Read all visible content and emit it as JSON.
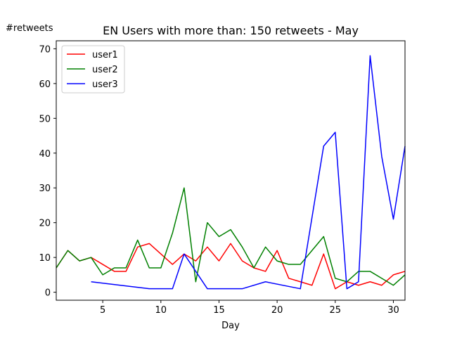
{
  "chart_data": {
    "type": "line",
    "title": "EN Users with more than: 150 retweets - May",
    "xlabel": "Day",
    "ylabel": "#retweets",
    "xlim": [
      1,
      31
    ],
    "ylim": [
      -2.3,
      72.3
    ],
    "xticks": [
      5,
      10,
      15,
      20,
      25,
      30
    ],
    "yticks": [
      0,
      10,
      20,
      30,
      40,
      50,
      60,
      70
    ],
    "grid": false,
    "legend_position": "upper-left",
    "series": [
      {
        "name": "user1",
        "color": "#ff0000",
        "points": [
          [
            1,
            7
          ],
          [
            2,
            12
          ],
          [
            3,
            9
          ],
          [
            4,
            10
          ],
          [
            5,
            8
          ],
          [
            6,
            6
          ],
          [
            7,
            6
          ],
          [
            8,
            13
          ],
          [
            9,
            14
          ],
          [
            10,
            11
          ],
          [
            11,
            8
          ],
          [
            12,
            11
          ],
          [
            13,
            9
          ],
          [
            14,
            13
          ],
          [
            15,
            9
          ],
          [
            16,
            14
          ],
          [
            17,
            9
          ],
          [
            18,
            7
          ],
          [
            19,
            6
          ],
          [
            20,
            12
          ],
          [
            21,
            4
          ],
          [
            22,
            3
          ],
          [
            23,
            2
          ],
          [
            24,
            11
          ],
          [
            25,
            1
          ],
          [
            26,
            3
          ],
          [
            27,
            2
          ],
          [
            28,
            3
          ],
          [
            29,
            2
          ],
          [
            30,
            5
          ],
          [
            31,
            6
          ]
        ]
      },
      {
        "name": "user2",
        "color": "#008000",
        "points": [
          [
            1,
            7
          ],
          [
            2,
            12
          ],
          [
            3,
            9
          ],
          [
            4,
            10
          ],
          [
            5,
            5
          ],
          [
            6,
            7
          ],
          [
            7,
            7
          ],
          [
            8,
            15
          ],
          [
            9,
            7
          ],
          [
            10,
            7
          ],
          [
            11,
            17
          ],
          [
            12,
            30
          ],
          [
            13,
            3
          ],
          [
            14,
            20
          ],
          [
            15,
            16
          ],
          [
            16,
            18
          ],
          [
            17,
            13
          ],
          [
            18,
            7
          ],
          [
            19,
            13
          ],
          [
            20,
            9
          ],
          [
            21,
            8
          ],
          [
            22,
            8
          ],
          [
            23,
            12
          ],
          [
            24,
            16
          ],
          [
            25,
            4
          ],
          [
            26,
            3
          ],
          [
            27,
            6
          ],
          [
            28,
            6
          ],
          [
            29,
            4
          ],
          [
            30,
            2
          ],
          [
            31,
            5
          ]
        ]
      },
      {
        "name": "user3",
        "color": "#0000ff",
        "points": [
          [
            4,
            3
          ],
          [
            9,
            1
          ],
          [
            11,
            1
          ],
          [
            12,
            11
          ],
          [
            14,
            1
          ],
          [
            17,
            1
          ],
          [
            19,
            3
          ],
          [
            22,
            1
          ],
          [
            24,
            42
          ],
          [
            25,
            46
          ],
          [
            26,
            1
          ],
          [
            27,
            3
          ],
          [
            28,
            68
          ],
          [
            29,
            39
          ],
          [
            30,
            21
          ],
          [
            31,
            42
          ]
        ]
      }
    ]
  }
}
